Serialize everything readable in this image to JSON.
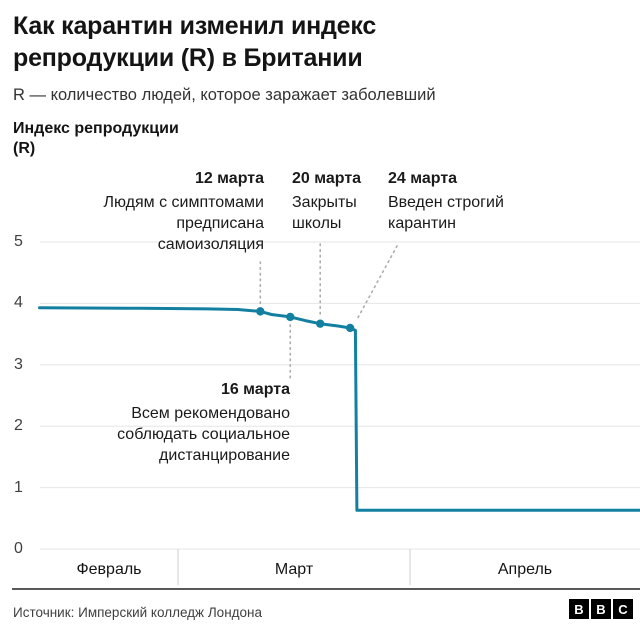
{
  "header": {
    "title": "Как карантин изменил индекс\nрепродукции (R) в Британии",
    "subtitle": "R — количество людей, которое заражает заболевший"
  },
  "chart": {
    "axis_title": "Индекс репродукции\n(R)",
    "line_color": "#1380A1",
    "grid_color": "#e6e6e6",
    "ytick_labels": [
      "5",
      "4",
      "3",
      "2",
      "1",
      "0"
    ],
    "months": [
      "Февраль",
      "Март",
      "Апрель"
    ]
  },
  "annotations": {
    "mar12": {
      "date": "12 марта",
      "text": "Людям с симптомами\nпредписана\nсамоизоляция"
    },
    "mar16": {
      "date": "16 марта",
      "text": "Всем рекомендовано\nсоблюдать социальное\nдистанцирование"
    },
    "mar20": {
      "date": "20 марта",
      "text": "Закрыты\nшколы"
    },
    "mar24": {
      "date": "24 марта",
      "text": "Введен строгий\nкарантин"
    }
  },
  "footer": {
    "source": "Источник: Имперский колледж Лондона",
    "logo": [
      "B",
      "B",
      "C"
    ]
  },
  "chart_data": {
    "type": "line",
    "title": "Как карантин изменил индекс репродукции (R) в Британии",
    "ylabel": "Индекс репродукции (R)",
    "ylim": [
      0,
      5
    ],
    "yticks": [
      0,
      1,
      2,
      3,
      4,
      5
    ],
    "x_unit": "day index, day 0 = 1 февраля",
    "x_range": [
      10.5,
      90.7
    ],
    "month_boundaries_days": [
      29,
      60
    ],
    "x_month_labels": [
      "Февраль",
      "Март",
      "Апрель"
    ],
    "points": [
      [
        10.5,
        3.93
      ],
      [
        24,
        3.92
      ],
      [
        33,
        3.91
      ],
      [
        37,
        3.9
      ],
      [
        40,
        3.87
      ],
      [
        41.5,
        3.82
      ],
      [
        44,
        3.78
      ],
      [
        46,
        3.72
      ],
      [
        48,
        3.67
      ],
      [
        50.5,
        3.63
      ],
      [
        52,
        3.6
      ],
      [
        52.7,
        3.56
      ],
      [
        52.9,
        0.63
      ],
      [
        90.7,
        0.63
      ]
    ],
    "markers": [
      [
        40,
        3.87
      ],
      [
        44,
        3.78
      ],
      [
        48,
        3.67
      ],
      [
        52,
        3.6
      ]
    ],
    "events": [
      {
        "day": 40,
        "r": 3.87,
        "label": "12 марта — Людям с симптомами предписана самоизоляция"
      },
      {
        "day": 44,
        "r": 3.78,
        "label": "16 марта — Всем рекомендовано соблюдать социальное дистанцирование"
      },
      {
        "day": 48,
        "r": 3.67,
        "label": "20 марта — Закрыты школы"
      },
      {
        "day": 52,
        "r": 3.6,
        "label": "24 марта — Введен строгий карантин"
      }
    ],
    "legend": "off",
    "grid": "horizontal"
  }
}
